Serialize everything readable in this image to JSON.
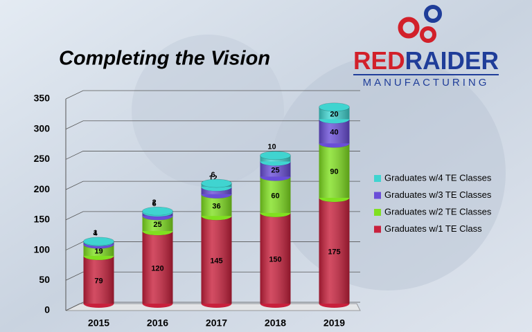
{
  "chart_data": {
    "type": "bar",
    "stacked": true,
    "title": "Completing the Vision",
    "logo": {
      "parts": [
        "RED",
        "RAIDER"
      ],
      "tagline": "MANUFACTURING"
    },
    "categories": [
      "2015",
      "2016",
      "2017",
      "2018",
      "2019"
    ],
    "series": [
      {
        "name": "Graduates w/1 TE Class",
        "color": "#c8203c",
        "values": [
          79,
          120,
          145,
          150,
          175
        ]
      },
      {
        "name": "Graduates w/2 TE Classes",
        "color": "#80e020",
        "values": [
          19,
          25,
          36,
          60,
          90
        ]
      },
      {
        "name": "Graduates w/3 TE Classes",
        "color": "#6a4ed8",
        "values": [
          4,
          6,
          12,
          25,
          40
        ]
      },
      {
        "name": "Graduates w/4 TE Classes",
        "color": "#40d4d0",
        "values": [
          1,
          2,
          6,
          10,
          20
        ]
      }
    ],
    "ylim": [
      0,
      350
    ],
    "yticks": [
      0,
      50,
      100,
      150,
      200,
      250,
      300,
      350
    ],
    "grid": true,
    "legend": "right"
  }
}
